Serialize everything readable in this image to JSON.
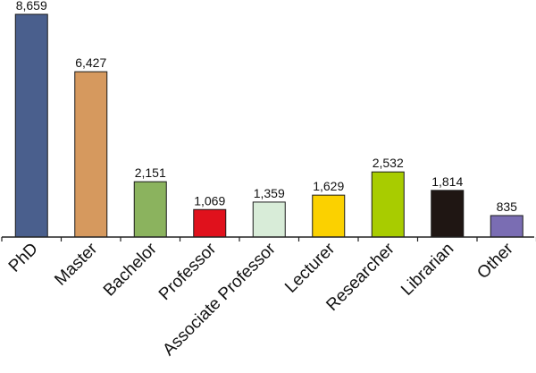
{
  "chart_data": {
    "type": "bar",
    "title": "",
    "xlabel": "",
    "ylabel": "",
    "ylim": [
      0,
      8800
    ],
    "grid": false,
    "legend": "none",
    "categories": [
      "PhD",
      "Master",
      "Bachelor",
      "Professor",
      "Associate Professor",
      "Lecturer",
      "Researcher",
      "Librarian",
      "Other"
    ],
    "values": [
      8659,
      6427,
      2151,
      1069,
      1359,
      1629,
      2532,
      1814,
      835
    ],
    "value_labels": [
      "8,659",
      "6,427",
      "2,151",
      "1,069",
      "1,359",
      "1,629",
      "2,532",
      "1,814",
      "835"
    ],
    "colors": [
      "#4a5f8d",
      "#d6995e",
      "#8bb35e",
      "#e0111c",
      "#d8ecd8",
      "#fbd100",
      "#a8cc00",
      "#1f1613",
      "#7a6db3"
    ]
  }
}
